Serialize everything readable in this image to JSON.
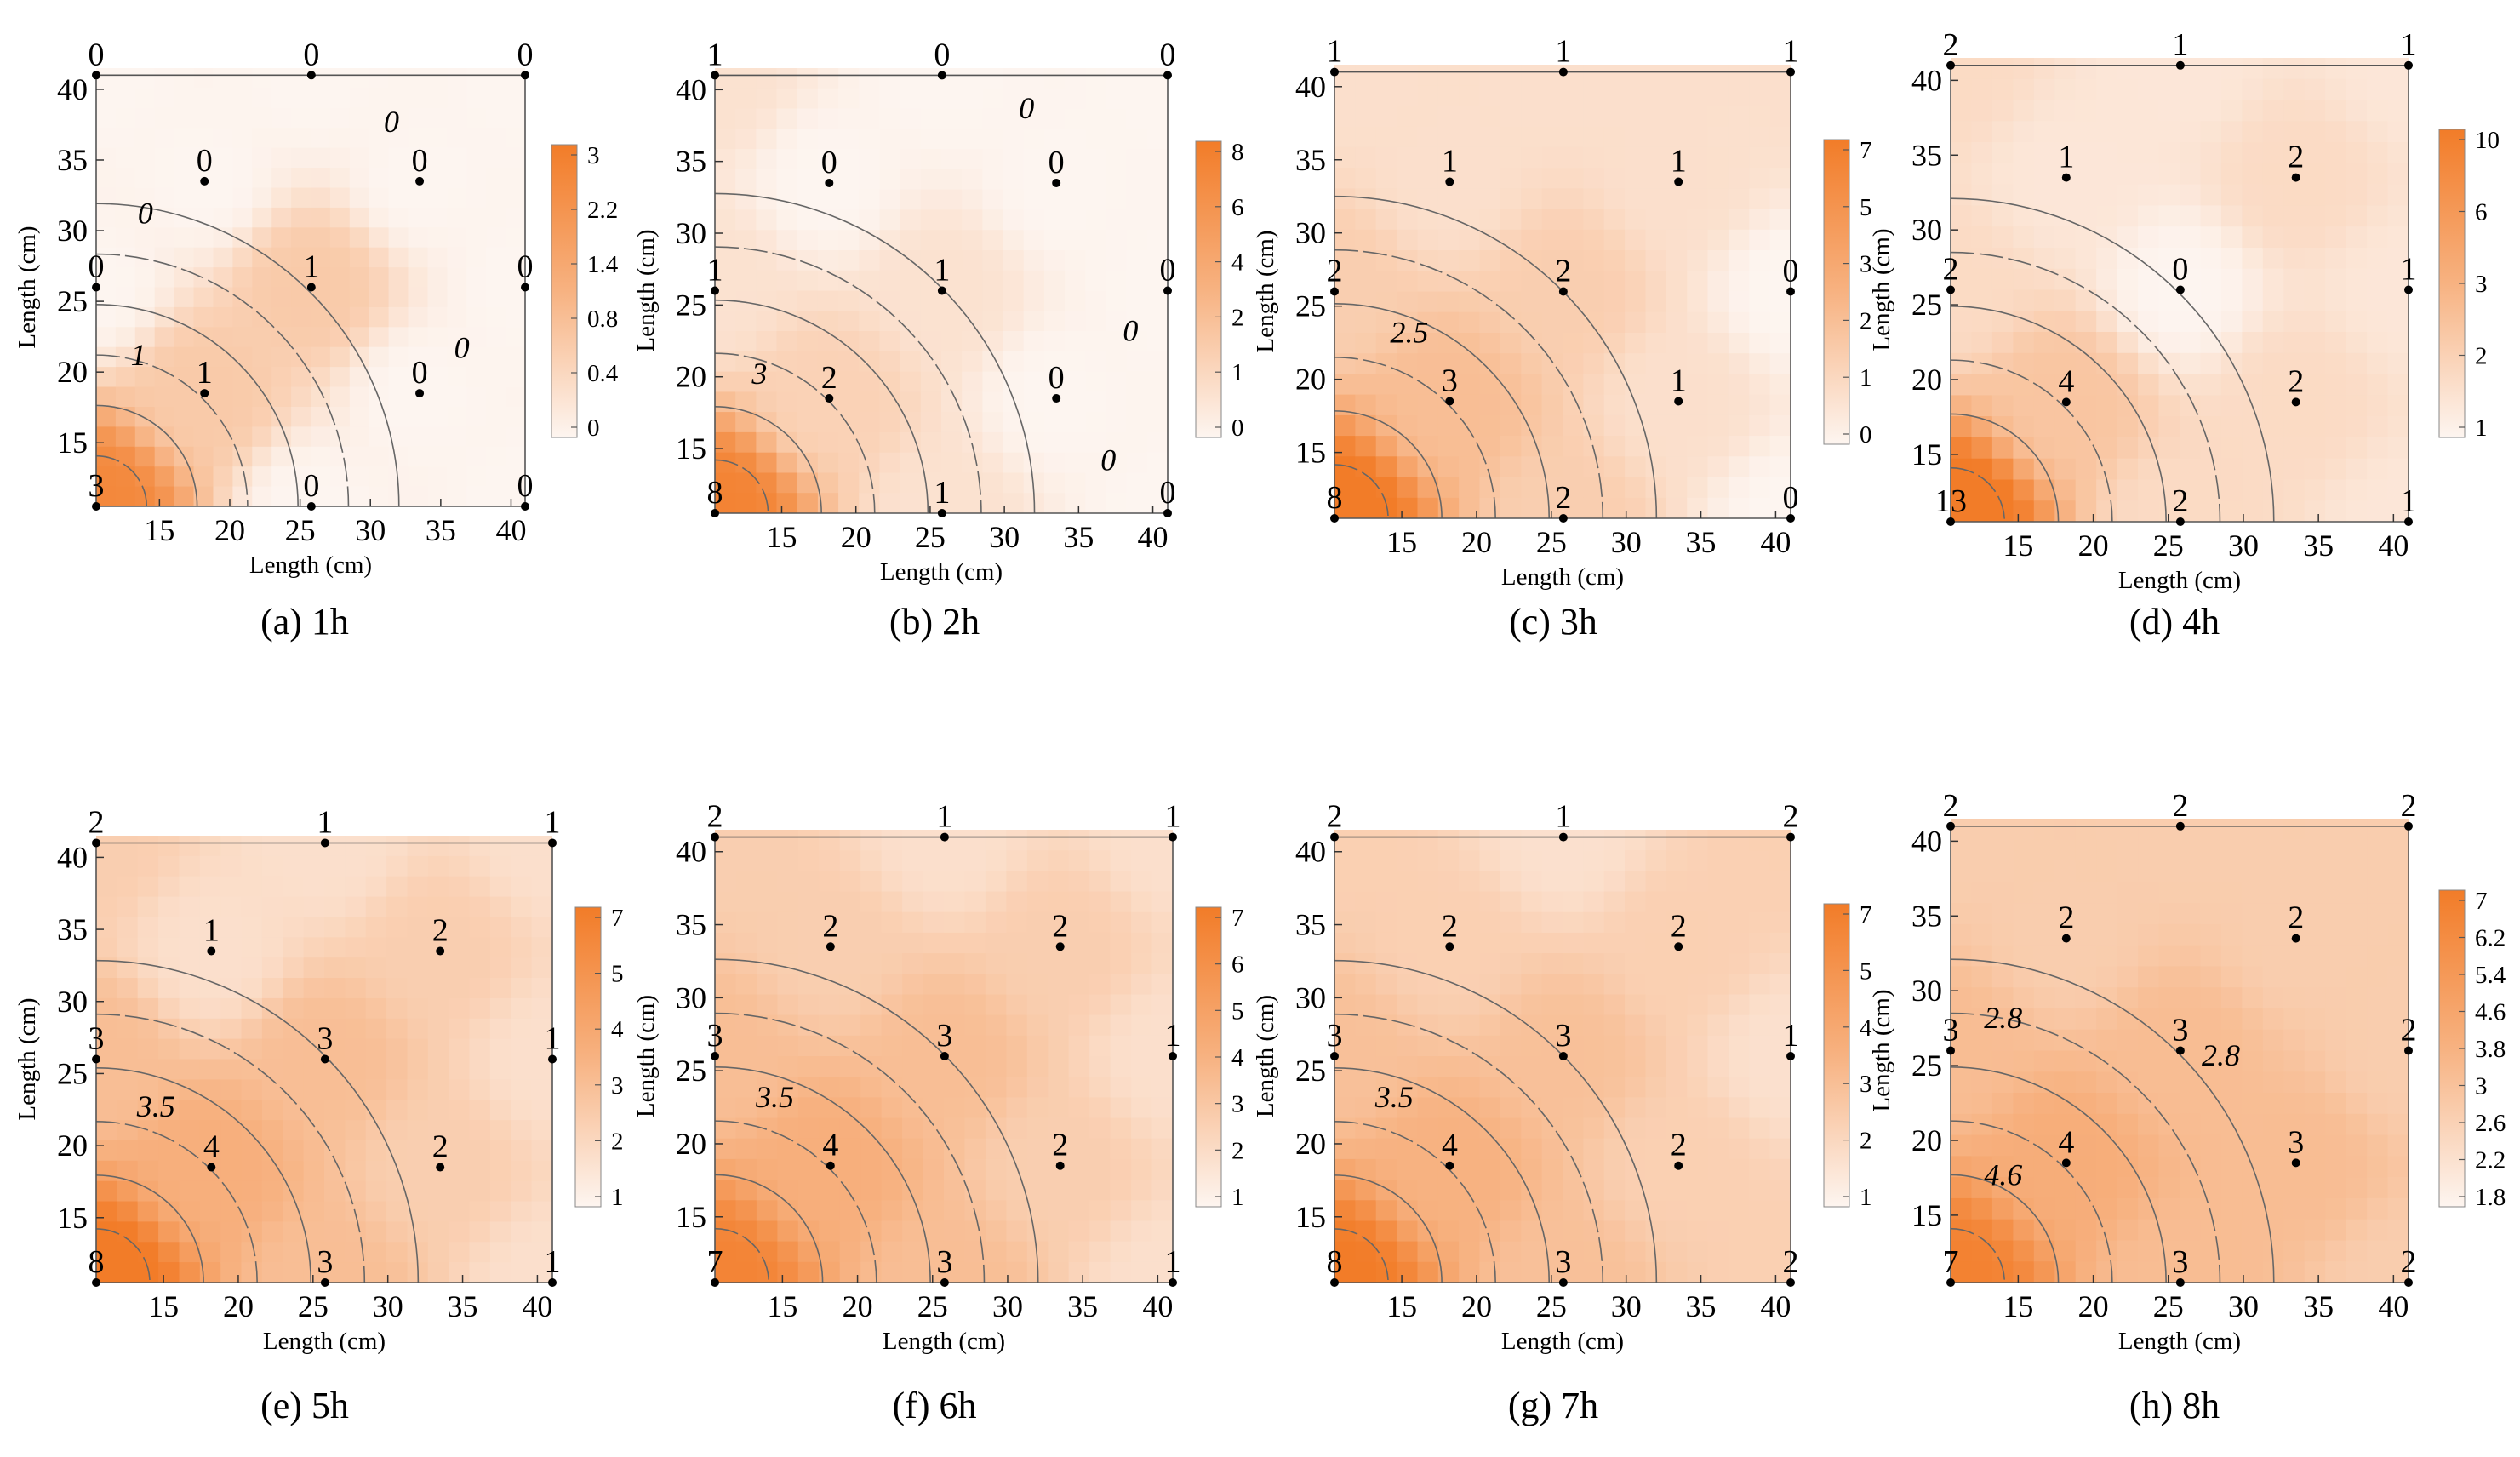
{
  "figure": {
    "x_label": "Length (cm)",
    "y_label": "Length (cm)"
  },
  "chart_data": [
    {
      "type": "heatmap",
      "id": "a",
      "caption": "(a) 1h",
      "title": "1h",
      "xlabel": "Length (cm)",
      "ylabel": "Length (cm)",
      "xlim": [
        10.5,
        41
      ],
      "ylim": [
        10.5,
        41.5
      ],
      "xticks": [
        15,
        20,
        25,
        30,
        35,
        40
      ],
      "yticks": [
        15,
        20,
        25,
        30,
        35,
        40
      ],
      "boundary": [
        [
          10.5,
          41
        ],
        [
          41,
          41
        ],
        [
          41,
          10.5
        ],
        [
          10.5,
          10.5
        ]
      ],
      "colorbar_ticks": [
        "3",
        "2.2",
        "1.4",
        "0.8",
        "0.4",
        "0"
      ],
      "colorbar_max": 3.4,
      "points": [
        {
          "x": 10.5,
          "y": 41,
          "label": "0"
        },
        {
          "x": 25.8,
          "y": 41,
          "label": "0"
        },
        {
          "x": 41,
          "y": 41,
          "label": "0"
        },
        {
          "x": 18.2,
          "y": 33.5,
          "label": "0"
        },
        {
          "x": 33.5,
          "y": 33.5,
          "label": "0"
        },
        {
          "x": 10.5,
          "y": 26,
          "label": "0"
        },
        {
          "x": 25.8,
          "y": 26,
          "label": "1"
        },
        {
          "x": 41,
          "y": 26,
          "label": "0"
        },
        {
          "x": 18.2,
          "y": 18.5,
          "label": "1"
        },
        {
          "x": 33.5,
          "y": 18.5,
          "label": "0"
        },
        {
          "x": 10.5,
          "y": 10.5,
          "label": "3"
        },
        {
          "x": 25.8,
          "y": 10.5,
          "label": "0"
        },
        {
          "x": 41,
          "y": 10.5,
          "label": "0"
        }
      ],
      "contour_labels": [
        {
          "x": 13.5,
          "y": 20.5,
          "text": "1"
        },
        {
          "x": 14,
          "y": 30.5,
          "text": "0"
        },
        {
          "x": 31.5,
          "y": 37,
          "text": "0"
        },
        {
          "x": 36.5,
          "y": 21,
          "text": "0"
        }
      ]
    },
    {
      "type": "heatmap",
      "id": "b",
      "caption": "(b) 2h",
      "title": "2h",
      "xlabel": "Length (cm)",
      "ylabel": "Length (cm)",
      "xlim": [
        10.5,
        41
      ],
      "ylim": [
        10.5,
        41.5
      ],
      "xticks": [
        15,
        20,
        25,
        30,
        35,
        40
      ],
      "yticks": [
        15,
        20,
        25,
        30,
        35,
        40
      ],
      "boundary": [
        [
          10.5,
          41
        ],
        [
          41,
          41
        ],
        [
          41,
          10.5
        ],
        [
          10.5,
          10.5
        ]
      ],
      "colorbar_ticks": [
        "8",
        "6",
        "4",
        "2",
        "1",
        "0"
      ],
      "colorbar_max": 8.6,
      "points": [
        {
          "x": 10.5,
          "y": 41,
          "label": "1"
        },
        {
          "x": 25.8,
          "y": 41,
          "label": "0"
        },
        {
          "x": 41,
          "y": 41,
          "label": "0"
        },
        {
          "x": 18.2,
          "y": 33.5,
          "label": "0"
        },
        {
          "x": 33.5,
          "y": 33.5,
          "label": "0"
        },
        {
          "x": 10.5,
          "y": 26,
          "label": "1"
        },
        {
          "x": 25.8,
          "y": 26,
          "label": "1"
        },
        {
          "x": 41,
          "y": 26,
          "label": "0"
        },
        {
          "x": 18.2,
          "y": 18.5,
          "label": "2"
        },
        {
          "x": 33.5,
          "y": 18.5,
          "label": "0"
        },
        {
          "x": 10.5,
          "y": 10.5,
          "label": "8"
        },
        {
          "x": 25.8,
          "y": 10.5,
          "label": "1"
        },
        {
          "x": 41,
          "y": 10.5,
          "label": "0"
        }
      ],
      "contour_labels": [
        {
          "x": 13.5,
          "y": 19.5,
          "text": "3"
        },
        {
          "x": 31.5,
          "y": 38,
          "text": "0"
        },
        {
          "x": 38.5,
          "y": 22.5,
          "text": "0"
        },
        {
          "x": 37,
          "y": 13.5,
          "text": "0"
        }
      ]
    },
    {
      "type": "heatmap",
      "id": "c",
      "caption": "(c) 3h",
      "title": "3h",
      "xlabel": "Length (cm)",
      "ylabel": "Length (cm)",
      "xlim": [
        10.5,
        41
      ],
      "ylim": [
        10.5,
        41.5
      ],
      "xticks": [
        15,
        20,
        25,
        30,
        35,
        40
      ],
      "yticks": [
        15,
        20,
        25,
        30,
        35,
        40
      ],
      "boundary": [
        [
          10.5,
          41
        ],
        [
          41,
          41
        ],
        [
          41,
          10.5
        ],
        [
          10.5,
          10.5
        ]
      ],
      "colorbar_ticks": [
        "7",
        "5",
        "3",
        "2",
        "1",
        "0"
      ],
      "colorbar_max": 7.6,
      "points": [
        {
          "x": 10.5,
          "y": 41,
          "label": "1"
        },
        {
          "x": 25.8,
          "y": 41,
          "label": "1"
        },
        {
          "x": 41,
          "y": 41,
          "label": "1"
        },
        {
          "x": 18.2,
          "y": 33.5,
          "label": "1"
        },
        {
          "x": 33.5,
          "y": 33.5,
          "label": "1"
        },
        {
          "x": 10.5,
          "y": 26,
          "label": "2"
        },
        {
          "x": 25.8,
          "y": 26,
          "label": "2"
        },
        {
          "x": 41,
          "y": 26,
          "label": "0"
        },
        {
          "x": 18.2,
          "y": 18.5,
          "label": "3"
        },
        {
          "x": 33.5,
          "y": 18.5,
          "label": "1"
        },
        {
          "x": 10.5,
          "y": 10.5,
          "label": "8"
        },
        {
          "x": 25.8,
          "y": 10.5,
          "label": "2"
        },
        {
          "x": 41,
          "y": 10.5,
          "label": "0"
        }
      ],
      "contour_labels": [
        {
          "x": 15.5,
          "y": 22.5,
          "text": "2.5"
        }
      ]
    },
    {
      "type": "heatmap",
      "id": "d",
      "caption": "(d) 4h",
      "title": "4h",
      "xlabel": "Length (cm)",
      "ylabel": "Length (cm)",
      "xlim": [
        10.5,
        41
      ],
      "ylim": [
        10.5,
        41.5
      ],
      "xticks": [
        15,
        20,
        25,
        30,
        35,
        40
      ],
      "yticks": [
        15,
        20,
        25,
        30,
        35,
        40
      ],
      "boundary": [
        [
          10.5,
          41
        ],
        [
          41,
          41
        ],
        [
          41,
          10.5
        ],
        [
          10.5,
          10.5
        ]
      ],
      "colorbar_ticks": [
        "10",
        "6",
        "3",
        "2",
        "1"
      ],
      "colorbar_max": 12,
      "points": [
        {
          "x": 10.5,
          "y": 41,
          "label": "2"
        },
        {
          "x": 25.8,
          "y": 41,
          "label": "1"
        },
        {
          "x": 41,
          "y": 41,
          "label": "1"
        },
        {
          "x": 18.2,
          "y": 33.5,
          "label": "1"
        },
        {
          "x": 33.5,
          "y": 33.5,
          "label": "2"
        },
        {
          "x": 10.5,
          "y": 26,
          "label": "2"
        },
        {
          "x": 25.8,
          "y": 26,
          "label": "0"
        },
        {
          "x": 41,
          "y": 26,
          "label": "1"
        },
        {
          "x": 18.2,
          "y": 18.5,
          "label": "4"
        },
        {
          "x": 33.5,
          "y": 18.5,
          "label": "2"
        },
        {
          "x": 10.5,
          "y": 10.5,
          "label": "13"
        },
        {
          "x": 25.8,
          "y": 10.5,
          "label": "2"
        },
        {
          "x": 41,
          "y": 10.5,
          "label": "1"
        }
      ],
      "contour_labels": []
    },
    {
      "type": "heatmap",
      "id": "e",
      "caption": "(e) 5h",
      "title": "5h",
      "xlabel": "Length (cm)",
      "ylabel": "Length (cm)",
      "xlim": [
        10.5,
        41
      ],
      "ylim": [
        10.5,
        41.5
      ],
      "xticks": [
        15,
        20,
        25,
        30,
        35,
        40
      ],
      "yticks": [
        15,
        20,
        25,
        30,
        35,
        40
      ],
      "boundary": [
        [
          10.5,
          41
        ],
        [
          41,
          41
        ],
        [
          41,
          10.5
        ],
        [
          10.5,
          10.5
        ]
      ],
      "colorbar_ticks": [
        "7",
        "5",
        "4",
        "3",
        "2",
        "1"
      ],
      "colorbar_max": 7.6,
      "points": [
        {
          "x": 10.5,
          "y": 41,
          "label": "2"
        },
        {
          "x": 25.8,
          "y": 41,
          "label": "1"
        },
        {
          "x": 41,
          "y": 41,
          "label": "1"
        },
        {
          "x": 18.2,
          "y": 33.5,
          "label": "1"
        },
        {
          "x": 33.5,
          "y": 33.5,
          "label": "2"
        },
        {
          "x": 10.5,
          "y": 26,
          "label": "3"
        },
        {
          "x": 25.8,
          "y": 26,
          "label": "3"
        },
        {
          "x": 41,
          "y": 26,
          "label": "1"
        },
        {
          "x": 18.2,
          "y": 18.5,
          "label": "4"
        },
        {
          "x": 33.5,
          "y": 18.5,
          "label": "2"
        },
        {
          "x": 10.5,
          "y": 10.5,
          "label": "8"
        },
        {
          "x": 25.8,
          "y": 10.5,
          "label": "3"
        },
        {
          "x": 41,
          "y": 10.5,
          "label": "1"
        }
      ],
      "contour_labels": [
        {
          "x": 14.5,
          "y": 22,
          "text": "3.5"
        }
      ]
    },
    {
      "type": "heatmap",
      "id": "f",
      "caption": "(f) 6h",
      "title": "6h",
      "xlabel": "Length (cm)",
      "ylabel": "Length (cm)",
      "xlim": [
        10.5,
        41
      ],
      "ylim": [
        10.5,
        41.5
      ],
      "xticks": [
        15,
        20,
        25,
        30,
        35,
        40
      ],
      "yticks": [
        15,
        20,
        25,
        30,
        35,
        40
      ],
      "boundary": [
        [
          10.5,
          41
        ],
        [
          41,
          41
        ],
        [
          41,
          10.5
        ],
        [
          10.5,
          10.5
        ]
      ],
      "colorbar_ticks": [
        "7",
        "6",
        "5",
        "4",
        "3",
        "2",
        "1"
      ],
      "colorbar_max": 7.6,
      "points": [
        {
          "x": 10.5,
          "y": 41,
          "label": "2"
        },
        {
          "x": 25.8,
          "y": 41,
          "label": "1"
        },
        {
          "x": 41,
          "y": 41,
          "label": "1"
        },
        {
          "x": 18.2,
          "y": 33.5,
          "label": "2"
        },
        {
          "x": 33.5,
          "y": 33.5,
          "label": "2"
        },
        {
          "x": 10.5,
          "y": 26,
          "label": "3"
        },
        {
          "x": 25.8,
          "y": 26,
          "label": "3"
        },
        {
          "x": 41,
          "y": 26,
          "label": "1"
        },
        {
          "x": 18.2,
          "y": 18.5,
          "label": "4"
        },
        {
          "x": 33.5,
          "y": 18.5,
          "label": "2"
        },
        {
          "x": 10.5,
          "y": 10.5,
          "label": "7"
        },
        {
          "x": 25.8,
          "y": 10.5,
          "label": "3"
        },
        {
          "x": 41,
          "y": 10.5,
          "label": "1"
        }
      ],
      "contour_labels": [
        {
          "x": 14.5,
          "y": 22.5,
          "text": "3.5"
        }
      ]
    },
    {
      "type": "heatmap",
      "id": "g",
      "caption": "(g) 7h",
      "title": "7h",
      "xlabel": "Length (cm)",
      "ylabel": "Length (cm)",
      "xlim": [
        10.5,
        41
      ],
      "ylim": [
        10.5,
        41.5
      ],
      "xticks": [
        15,
        20,
        25,
        30,
        35,
        40
      ],
      "yticks": [
        15,
        20,
        25,
        30,
        35,
        40
      ],
      "boundary": [
        [
          10.5,
          41
        ],
        [
          41,
          41
        ],
        [
          41,
          10.5
        ],
        [
          10.5,
          10.5
        ]
      ],
      "colorbar_ticks": [
        "7",
        "5",
        "4",
        "3",
        "2",
        "1"
      ],
      "colorbar_max": 8,
      "points": [
        {
          "x": 10.5,
          "y": 41,
          "label": "2"
        },
        {
          "x": 25.8,
          "y": 41,
          "label": "1"
        },
        {
          "x": 41,
          "y": 41,
          "label": "2"
        },
        {
          "x": 18.2,
          "y": 33.5,
          "label": "2"
        },
        {
          "x": 33.5,
          "y": 33.5,
          "label": "2"
        },
        {
          "x": 10.5,
          "y": 26,
          "label": "3"
        },
        {
          "x": 25.8,
          "y": 26,
          "label": "3"
        },
        {
          "x": 41,
          "y": 26,
          "label": "1"
        },
        {
          "x": 18.2,
          "y": 18.5,
          "label": "4"
        },
        {
          "x": 33.5,
          "y": 18.5,
          "label": "2"
        },
        {
          "x": 10.5,
          "y": 10.5,
          "label": "8"
        },
        {
          "x": 25.8,
          "y": 10.5,
          "label": "3"
        },
        {
          "x": 41,
          "y": 10.5,
          "label": "2"
        }
      ],
      "contour_labels": [
        {
          "x": 14.5,
          "y": 22.5,
          "text": "3.5"
        }
      ]
    },
    {
      "type": "heatmap",
      "id": "h",
      "caption": "(h) 8h",
      "title": "8h",
      "xlabel": "Length (cm)",
      "ylabel": "Length (cm)",
      "xlim": [
        10.5,
        41
      ],
      "ylim": [
        10.5,
        41.5
      ],
      "xticks": [
        15,
        20,
        25,
        30,
        35,
        40
      ],
      "yticks": [
        15,
        20,
        25,
        30,
        35,
        40
      ],
      "boundary": [
        [
          10.5,
          41
        ],
        [
          25.8,
          41
        ],
        [
          41,
          41
        ],
        [
          41,
          10.5
        ],
        [
          10.5,
          10.5
        ]
      ],
      "colorbar_ticks": [
        "7",
        "6.2",
        "5.4",
        "4.6",
        "3.8",
        "3",
        "2.6",
        "2.2",
        "1.8"
      ],
      "colorbar_max": 7.4,
      "points": [
        {
          "x": 10.5,
          "y": 41,
          "label": "2"
        },
        {
          "x": 25.8,
          "y": 41,
          "label": "2"
        },
        {
          "x": 41,
          "y": 41,
          "label": "2"
        },
        {
          "x": 18.2,
          "y": 33.5,
          "label": "2"
        },
        {
          "x": 33.5,
          "y": 33.5,
          "label": "2"
        },
        {
          "x": 10.5,
          "y": 26,
          "label": "3"
        },
        {
          "x": 25.8,
          "y": 26,
          "label": "3"
        },
        {
          "x": 41,
          "y": 26,
          "label": "2"
        },
        {
          "x": 18.2,
          "y": 18.5,
          "label": "4"
        },
        {
          "x": 33.5,
          "y": 18.5,
          "label": "3"
        },
        {
          "x": 10.5,
          "y": 10.5,
          "label": "7"
        },
        {
          "x": 25.8,
          "y": 10.5,
          "label": "3"
        },
        {
          "x": 41,
          "y": 10.5,
          "label": "2"
        }
      ],
      "contour_labels": [
        {
          "x": 14,
          "y": 27.5,
          "text": "2.8"
        },
        {
          "x": 28.5,
          "y": 25,
          "text": "2.8"
        },
        {
          "x": 14,
          "y": 17,
          "text": "4.6"
        }
      ]
    }
  ]
}
